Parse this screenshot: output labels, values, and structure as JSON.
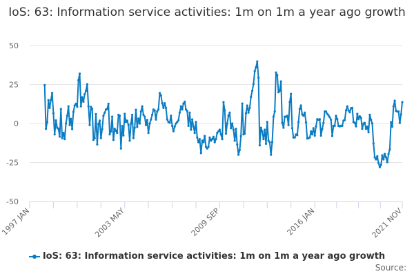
{
  "title": "IoS: 63: Information service activities: 1m on 1m a year ago growth",
  "source_label": "Source:",
  "chart_data": {
    "type": "line",
    "title": "IoS: 63: Information service activities: 1m on 1m a year ago growth",
    "xlabel": "",
    "ylabel": "",
    "ylim": [
      -50,
      50
    ],
    "yticks": [
      50,
      25,
      0,
      -25,
      -50
    ],
    "xlim": [
      "1997 JAN",
      "2021 NOV"
    ],
    "xticks": [
      "1997 JAN",
      "2003 MAY",
      "2009 SEP",
      "2016 JAN",
      "2021 NOV"
    ],
    "grid": true,
    "legend": "bottom",
    "color": "#0a7cc3",
    "frequency": "monthly",
    "series": [
      {
        "name": "IoS: 63: Information service activities: 1m on 1m a year ago growth",
        "values_by_year": {
          "1998": [
            24.6,
            -3.4,
            1,
            15,
            10,
            15,
            19.6,
            6.6,
            -7,
            2,
            -2.7,
            -3.4
          ],
          "1999": [
            -8.4,
            9.3,
            -9.4,
            -6,
            -10,
            0,
            5,
            11,
            -1,
            3,
            -3.6,
            7.5
          ],
          "2000": [
            11.5,
            12.7,
            10.7,
            27.8,
            32,
            11,
            16.8,
            14,
            18.7,
            20.9,
            25.2,
            11
          ],
          "2001": [
            -1,
            10.7,
            9.4,
            -10.5,
            -9.4,
            6,
            -13.4,
            -0.3,
            1.8,
            -9.4,
            -3.6,
            4.9
          ],
          "2002": [
            7,
            9,
            9.3,
            12.7,
            -7,
            -5,
            4.4,
            -10.5,
            -3.4,
            -4.6,
            -6,
            5.6
          ],
          "2003": [
            5,
            -16,
            -1.6,
            -7.6,
            6.2,
            1,
            1.8,
            -0.9,
            -11,
            0,
            5.6,
            -9.4
          ],
          "2004": [
            -2.7,
            8.8,
            -2.2,
            3.2,
            0,
            7.7,
            11,
            5.6,
            4.4,
            -1,
            2.3,
            -6
          ],
          "2005": [
            0,
            2.5,
            5.6,
            9,
            8.3,
            2.5,
            7.7,
            9,
            19.5,
            18,
            13,
            10
          ],
          "2006": [
            13,
            10,
            2.6,
            1,
            0.5,
            5,
            -1.5,
            -5,
            -2,
            0,
            1,
            2
          ],
          "2007": [
            7,
            11,
            9,
            12.8,
            14,
            9,
            8,
            -1.5,
            7,
            -4,
            2.6,
            -2
          ],
          "2008": [
            -6,
            1,
            -9,
            -12,
            -10,
            -19,
            -11,
            -12,
            -8,
            -15,
            -16,
            -15
          ],
          "2009": [
            -9,
            -11,
            -10,
            -8.5,
            -12,
            -10,
            -6,
            -5,
            -4,
            -7,
            -10,
            13.7
          ],
          "2010": [
            8.4,
            -6.5,
            0,
            5,
            7,
            -3,
            0,
            -4,
            -11,
            -3.4,
            -13.5,
            -20
          ],
          "2011": [
            -17,
            -8,
            12.8,
            -7,
            -6.5,
            6.6,
            11.5,
            7,
            10,
            17,
            21,
            25.4
          ],
          "2012": [
            33.6,
            36,
            39.8,
            29.4,
            -14,
            -2.7,
            -5,
            -10,
            -4,
            -13,
            1,
            -11
          ],
          "2013": [
            -12,
            -20,
            -12,
            4.4,
            7.7,
            32.7,
            31,
            20,
            21,
            27,
            0.5,
            -2.7
          ],
          "2014": [
            4.4,
            4.4,
            4.9,
            -1,
            13.7,
            19,
            -3,
            -9,
            -9,
            -7,
            -7.5,
            1
          ],
          "2015": [
            9.3,
            11.6,
            5.8,
            5,
            7,
            0.7,
            -9.6,
            -9.4,
            -9,
            -5,
            -7,
            -3
          ],
          "2016": [
            -7.8,
            -1.8,
            2.8,
            2.4,
            2.8,
            -7.8,
            -3.4,
            0.4,
            7.7,
            7.7,
            6.2,
            5.2
          ],
          "2017": [
            4,
            2.4,
            -8,
            -1.5,
            -1.5,
            4.9,
            2.8,
            -1.5,
            -1.8,
            -1.5,
            -1.5,
            1.8
          ],
          "2018": [
            2.2,
            8.4,
            11,
            8.4,
            7.2,
            9.8,
            10,
            1,
            0.4,
            -1.8,
            6.2,
            2.8
          ],
          "2019": [
            4.6,
            3.6,
            -3.4,
            0,
            0.4,
            -3.4,
            -2,
            -5.6,
            5.6,
            2.4,
            0,
            -12.8
          ],
          "2020": [
            -21.7,
            -23,
            -21,
            -25.5,
            -28,
            -26.5,
            -20.4,
            -23,
            -19.5,
            -21.7,
            -24.8,
            -19.5
          ],
          "2021": [
            -16.7,
            0.9,
            -2,
            11,
            14.6,
            8.1,
            7.7,
            7.7,
            0.4,
            5.8,
            13.7
          ]
        }
      }
    ]
  }
}
